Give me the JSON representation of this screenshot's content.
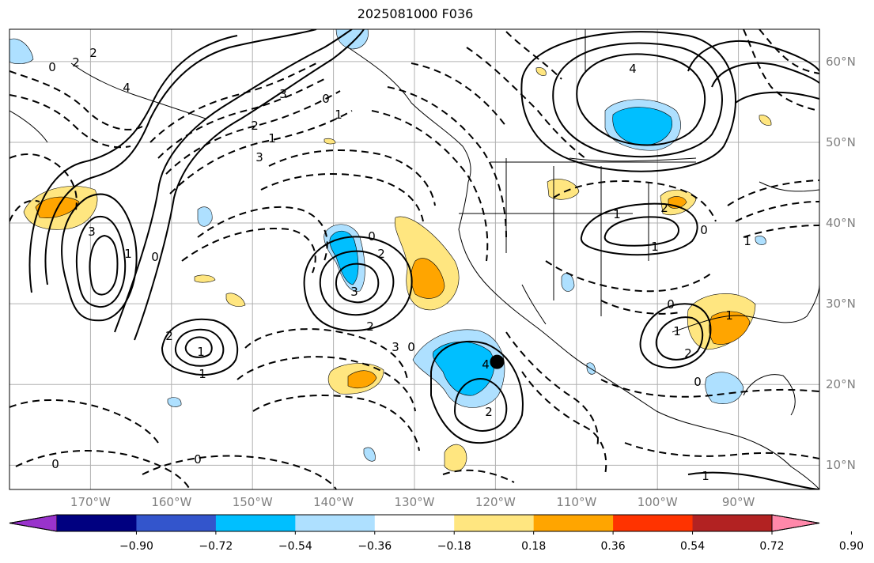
{
  "title": "2025081000 F036",
  "map": {
    "projection": "equirectangular",
    "lon_range": [
      -180,
      -80
    ],
    "lat_range": [
      7,
      64
    ],
    "latitude_ticks": [
      "10°N",
      "20°N",
      "30°N",
      "40°N",
      "50°N",
      "60°N"
    ],
    "longitude_ticks": [
      "170°W",
      "160°W",
      "150°W",
      "140°W",
      "130°W",
      "120°W",
      "110°W",
      "100°W",
      "90°W"
    ],
    "gridlines": true,
    "marker": {
      "type": "black-dot",
      "lon": -119.8,
      "lat": 22.8
    },
    "contour_labels": [
      "0",
      "2",
      "2",
      "4",
      "3",
      "2",
      "1",
      "3",
      "4",
      "0",
      "1",
      "2",
      "3",
      "0",
      "2",
      "3",
      "1",
      "0",
      "1",
      "2",
      "1",
      "0",
      "3",
      "4",
      "2",
      "1",
      "2",
      "1",
      "0",
      "1",
      "2",
      "0",
      "1",
      "0",
      "1",
      "0",
      "0",
      "1"
    ]
  },
  "colorbar": {
    "colors": [
      "#9933cc",
      "#000080",
      "#3355cc",
      "#00bfff",
      "#aee0ff",
      "#ffffff",
      "#ffe680",
      "#ffa500",
      "#ff3300",
      "#b22222",
      "#ff88aa"
    ],
    "tick_labels": [
      "−0.90",
      "−0.72",
      "−0.54",
      "−0.36",
      "−0.18",
      "0.18",
      "0.36",
      "0.54",
      "0.72",
      "0.90"
    ],
    "extend": "both"
  }
}
